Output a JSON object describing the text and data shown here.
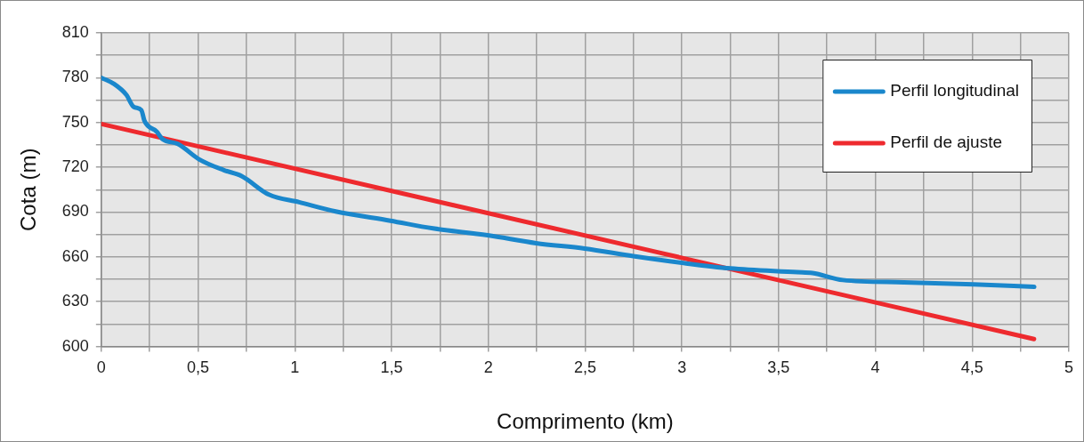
{
  "chart_data": {
    "type": "line",
    "xlabel": "Comprimento (km)",
    "ylabel": "Cota (m)",
    "xlim": [
      0,
      5
    ],
    "xticks": [
      0,
      {
        "value": 0.25,
        "label": null
      },
      {
        "value": 0.5,
        "label": "0,5"
      },
      {
        "value": 0.75,
        "label": null
      },
      1,
      {
        "value": 1.25,
        "label": null
      },
      {
        "value": 1.5,
        "label": "1,5"
      },
      {
        "value": 1.75,
        "label": null
      },
      2,
      {
        "value": 2.25,
        "label": null
      },
      {
        "value": 2.5,
        "label": "2,5"
      },
      {
        "value": 2.75,
        "label": null
      },
      3,
      {
        "value": 3.25,
        "label": null
      },
      {
        "value": 3.5,
        "label": "3,5"
      },
      {
        "value": 3.75,
        "label": null
      },
      4,
      {
        "value": 4.25,
        "label": null
      },
      {
        "value": 4.5,
        "label": "4,5"
      },
      {
        "value": 4.75,
        "label": null
      },
      5
    ],
    "ylim": [
      600,
      810
    ],
    "yticks": [
      600,
      {
        "value": 615,
        "label": null
      },
      630,
      {
        "value": 645,
        "label": null
      },
      660,
      {
        "value": 675,
        "label": null
      },
      690,
      {
        "value": 705,
        "label": null
      },
      720,
      {
        "value": 735,
        "label": null
      },
      750,
      {
        "value": 765,
        "label": null
      },
      780,
      {
        "value": 795,
        "label": null
      },
      810
    ],
    "grid": true,
    "legend": "top right",
    "marker": "none",
    "line_style": "solid",
    "series": [
      {
        "name": "Perfil longitudinal",
        "color": "#1a87cc",
        "x": [
          0,
          0.066,
          0.129,
          0.168,
          0.207,
          0.223,
          0.286,
          0.317,
          0.395,
          0.505,
          0.631,
          0.725,
          0.866,
          1.023,
          1.211,
          1.494,
          1.714,
          1.996,
          2.247,
          2.498,
          2.749,
          3.0,
          3.251,
          3.597,
          3.675,
          3.832,
          4.146,
          4.507,
          4.821
        ],
        "values": [
          780,
          775.8,
          768.6,
          760.4,
          758.3,
          751.1,
          743.9,
          738.8,
          735.7,
          725.4,
          718.2,
          714.1,
          701.7,
          696.6,
          690.4,
          684.2,
          679.1,
          674.5,
          669.2,
          665.6,
          660.5,
          656,
          652.3,
          649.8,
          649.2,
          644.5,
          643,
          641.6,
          639.9
        ]
      },
      {
        "name": "Perfil de ajuste",
        "color": "#ee2a2e",
        "x": [
          0,
          4.82
        ],
        "values": [
          749,
          605
        ]
      }
    ]
  }
}
